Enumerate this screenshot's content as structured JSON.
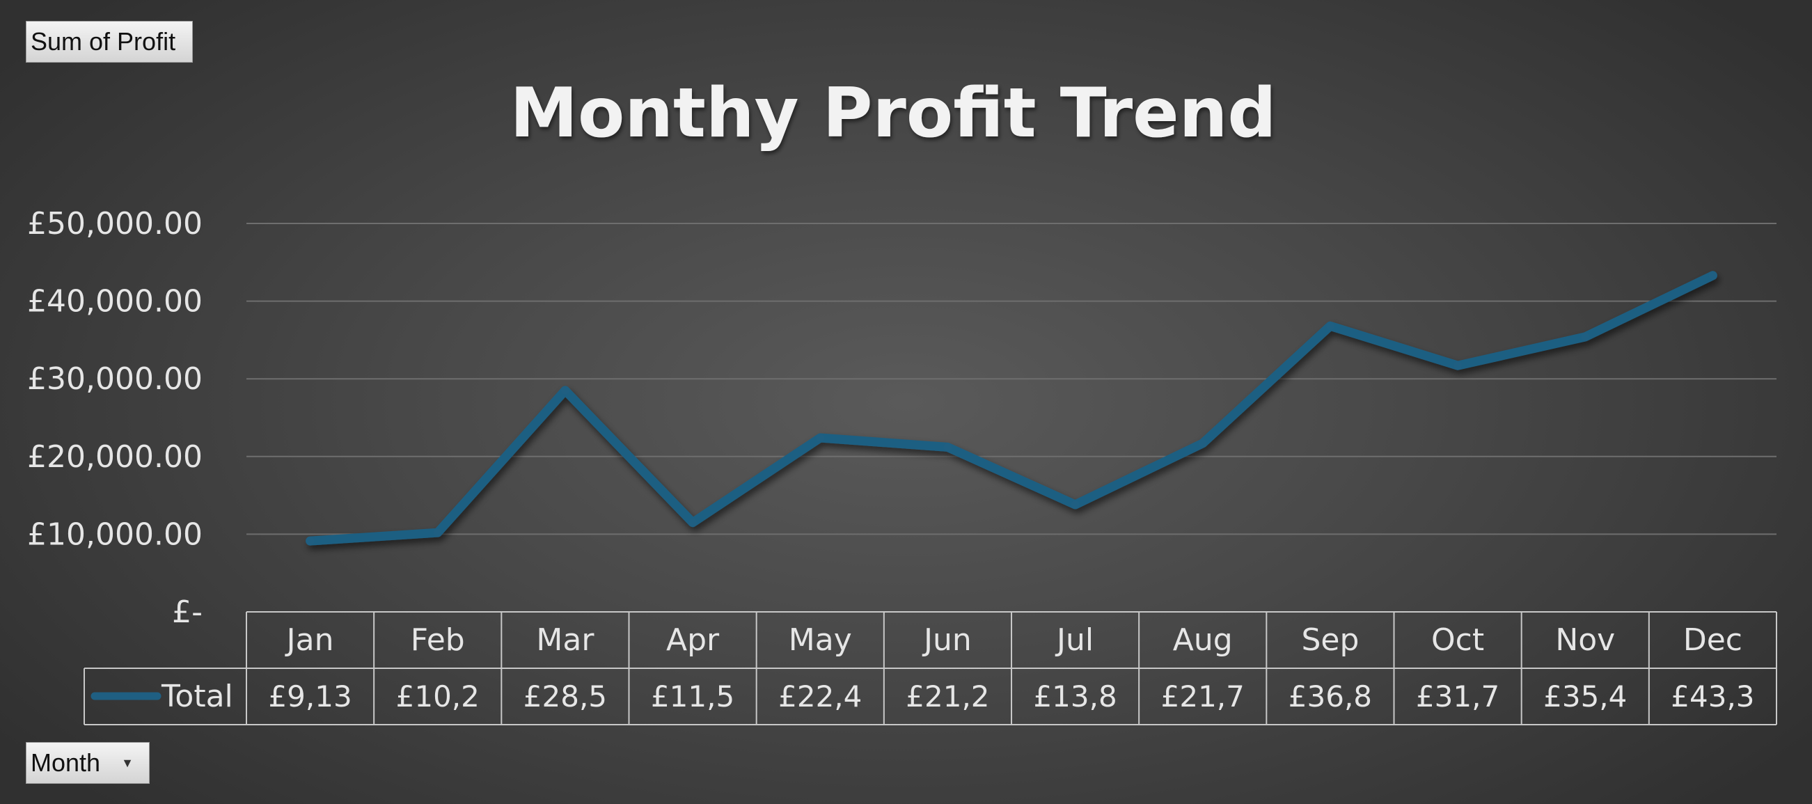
{
  "pivot": {
    "value_field_label": "Sum of Profit",
    "row_field_label": "Month"
  },
  "chart_data": {
    "type": "line",
    "title": "Monthy Profit Trend",
    "xlabel": "",
    "ylabel": "",
    "categories": [
      "Jan",
      "Feb",
      "Mar",
      "Apr",
      "May",
      "Jun",
      "Jul",
      "Aug",
      "Sep",
      "Oct",
      "Nov",
      "Dec"
    ],
    "series": [
      {
        "name": "Total",
        "values": [
          9130,
          10200,
          28500,
          11500,
          22400,
          21200,
          13800,
          21700,
          36800,
          31700,
          35400,
          43300
        ],
        "table_labels": [
          "£9,13",
          "£10,2",
          "£28,5",
          "£11,5",
          "£22,4",
          "£21,2",
          "£13,8",
          "£21,7",
          "£36,8",
          "£31,7",
          "£35,4",
          "£43,3"
        ]
      }
    ],
    "ylim": [
      0,
      50000
    ],
    "yticks": [
      0,
      10000,
      20000,
      30000,
      40000,
      50000
    ],
    "ytick_labels": [
      "£-",
      "£10,000.00",
      "£20,000.00",
      "£30,000.00",
      "£40,000.00",
      "£50,000.00"
    ],
    "grid": true,
    "data_table": true,
    "line_color": "#1f5f82"
  }
}
